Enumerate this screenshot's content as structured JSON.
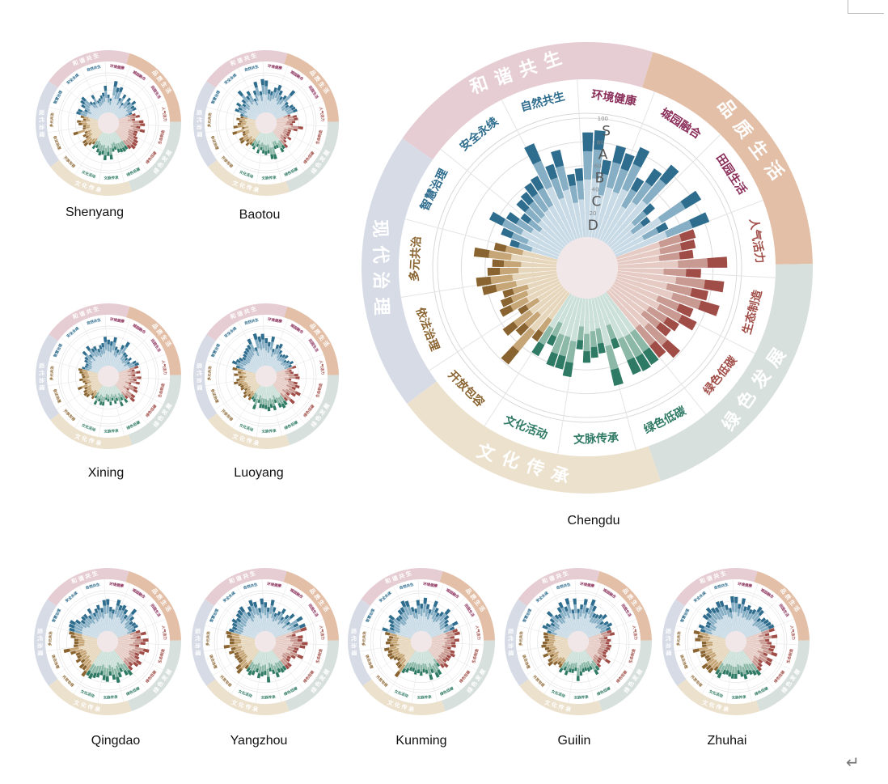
{
  "chart_data": {
    "type": "polar-bar",
    "rings": [
      {
        "name": "和谐共生",
        "color": "#e6cdd4"
      },
      {
        "name": "品质生活",
        "color": "#e3bfa7"
      },
      {
        "name": "绿色发展",
        "color": "#d7e0dc"
      },
      {
        "name": "文化传承",
        "color": "#ece1cd"
      },
      {
        "name": "现代治理",
        "color": "#d6dbe6"
      }
    ],
    "categories": [
      "环境健康",
      "城园融合",
      "田园生活",
      "人气活力",
      "生态制造",
      "绿色低碳",
      "绿色低碳",
      "文脉传承",
      "文化活动",
      "开放包容",
      "依法治理",
      "多元共治",
      "智慧治理",
      "安全永续",
      "自然共生"
    ],
    "grade_labels": [
      "S",
      "A",
      "B",
      "C",
      "D"
    ],
    "tick_labels": [
      "100",
      "80",
      "60",
      "40",
      "20"
    ],
    "charts": [
      {
        "city": "Chengdu",
        "values": [
          88,
          90,
          66,
          80,
          76,
          85,
          61,
          75,
          86,
          50,
          40,
          86,
          50,
          84,
          69,
          67,
          64,
          92,
          70,
          90,
          78,
          90,
          70,
          77,
          65,
          62,
          79,
          71,
          72,
          73,
          72,
          46,
          76,
          47,
          50,
          54,
          43,
          67,
          62,
          62,
          46,
          59,
          49,
          79,
          54,
          62,
          42,
          56,
          52,
          48,
          64,
          68,
          58,
          54,
          70,
          54,
          42,
          52,
          66,
          54,
          44,
          54,
          56,
          60,
          62,
          88,
          66,
          76,
          54,
          58
        ]
      },
      {
        "city": "Shenyang",
        "values": [
          48,
          38,
          86,
          70,
          74,
          46,
          60,
          38,
          60,
          52,
          64,
          54,
          56,
          40,
          48,
          58,
          44,
          66,
          70,
          58,
          72,
          54,
          54,
          60,
          66,
          68,
          70,
          62,
          58,
          60,
          58,
          56,
          46,
          50,
          70,
          60,
          72,
          58,
          62,
          56,
          46,
          52,
          42,
          50,
          60,
          58,
          44,
          48,
          40,
          70,
          42,
          40,
          52,
          56,
          40,
          48,
          62,
          60,
          44,
          58,
          66,
          70,
          46,
          40,
          58,
          38,
          42,
          48,
          54,
          72
        ]
      },
      {
        "city": "Baotou",
        "values": [
          86,
          62,
          58,
          70,
          80,
          68,
          54,
          62,
          86,
          52,
          48,
          58,
          60,
          62,
          40,
          56,
          58,
          50,
          44,
          72,
          58,
          42,
          42,
          42,
          52,
          40,
          46,
          58,
          56,
          62,
          46,
          46,
          72,
          70,
          54,
          58,
          54,
          46,
          56,
          40,
          50,
          44,
          44,
          52,
          44,
          58,
          56,
          42,
          40,
          66,
          38,
          60,
          48,
          44,
          52,
          42,
          44,
          62,
          56,
          66,
          52,
          60,
          84,
          60,
          70,
          44,
          64,
          86,
          58,
          90
        ]
      },
      {
        "city": "Xining",
        "values": [
          70,
          66,
          78,
          54,
          48,
          64,
          78,
          50,
          48,
          42,
          50,
          40,
          56,
          60,
          56,
          44,
          58,
          44,
          60,
          48,
          58,
          36,
          56,
          60,
          38,
          62,
          68,
          50,
          58,
          46,
          60,
          42,
          48,
          38,
          50,
          40,
          36,
          52,
          52,
          44,
          56,
          40,
          46,
          40,
          52,
          54,
          50,
          44,
          60,
          38,
          42,
          50,
          42,
          44,
          50,
          54,
          46,
          40,
          40,
          48,
          52,
          66,
          48,
          70,
          58,
          60,
          50,
          58,
          62,
          78
        ]
      },
      {
        "city": "Luoyang",
        "values": [
          74,
          64,
          80,
          48,
          62,
          68,
          52,
          44,
          48,
          52,
          40,
          46,
          54,
          46,
          56,
          42,
          46,
          58,
          62,
          40,
          58,
          66,
          58,
          76,
          66,
          52,
          76,
          58,
          66,
          70,
          64,
          48,
          66,
          58,
          66,
          60,
          58,
          58,
          46,
          66,
          48,
          44,
          50,
          44,
          54,
          48,
          40,
          48,
          46,
          50,
          60,
          52,
          44,
          58,
          48,
          64,
          56,
          70,
          62,
          58,
          52,
          56,
          60,
          64,
          68,
          82,
          54,
          90,
          80,
          86
        ]
      },
      {
        "city": "Qingdao",
        "values": [
          84,
          64,
          58,
          86,
          74,
          78,
          70,
          58,
          84,
          66,
          56,
          60,
          62,
          52,
          62,
          76,
          60,
          80,
          72,
          56,
          84,
          74,
          62,
          66,
          78,
          74,
          62,
          70,
          80,
          74,
          60,
          72,
          84,
          74,
          62,
          78,
          74,
          62,
          70,
          74,
          80,
          76,
          84,
          70,
          72,
          60,
          70,
          62,
          62,
          74,
          90,
          62,
          60,
          60,
          70,
          76,
          78,
          82,
          84,
          72,
          60,
          66,
          66,
          56,
          72,
          56,
          64,
          72,
          62,
          82
        ]
      },
      {
        "city": "Yangzhou",
        "values": [
          76,
          62,
          84,
          66,
          52,
          60,
          72,
          52,
          64,
          76,
          54,
          88,
          70,
          86,
          86,
          54,
          72,
          70,
          84,
          78,
          62,
          60,
          80,
          62,
          52,
          54,
          66,
          66,
          64,
          66,
          62,
          72,
          60,
          52,
          80,
          60,
          64,
          70,
          56,
          66,
          70,
          64,
          60,
          82,
          76,
          60,
          60,
          62,
          60,
          72,
          64,
          82,
          66,
          66,
          74,
          78,
          72,
          66,
          70,
          76,
          68,
          76,
          80,
          84,
          62,
          74,
          88,
          80,
          62,
          86
        ]
      },
      {
        "city": "Kunming",
        "values": [
          72,
          88,
          72,
          60,
          86,
          70,
          60,
          68,
          84,
          70,
          62,
          56,
          80,
          66,
          72,
          76,
          60,
          72,
          62,
          64,
          52,
          64,
          68,
          60,
          60,
          56,
          68,
          62,
          52,
          72,
          76,
          60,
          76,
          58,
          54,
          62,
          56,
          60,
          54,
          54,
          62,
          68,
          86,
          64,
          62,
          52,
          58,
          66,
          68,
          64,
          72,
          56,
          66,
          62,
          58,
          70,
          80,
          62,
          66,
          74,
          80,
          62,
          62,
          74,
          76,
          90,
          86,
          66,
          60,
          82
        ]
      },
      {
        "city": "Guilin",
        "values": [
          58,
          70,
          86,
          64,
          90,
          76,
          58,
          60,
          66,
          74,
          56,
          66,
          72,
          64,
          64,
          70,
          50,
          58,
          54,
          60,
          58,
          54,
          52,
          56,
          72,
          50,
          52,
          60,
          64,
          72,
          54,
          56,
          52,
          54,
          62,
          76,
          50,
          56,
          56,
          66,
          56,
          66,
          56,
          52,
          60,
          72,
          66,
          56,
          72,
          58,
          62,
          70,
          66,
          60,
          64,
          66,
          58,
          74,
          68,
          58,
          66,
          84,
          64,
          60,
          76,
          86,
          70,
          90,
          58,
          86
        ]
      },
      {
        "city": "Zhuhai",
        "values": [
          90,
          72,
          88,
          68,
          74,
          66,
          70,
          84,
          80,
          60,
          70,
          74,
          76,
          80,
          78,
          62,
          82,
          60,
          66,
          76,
          74,
          86,
          62,
          80,
          82,
          60,
          66,
          72,
          80,
          74,
          68,
          64,
          74,
          66,
          58,
          70,
          70,
          66,
          62,
          64,
          78,
          72,
          66,
          80,
          78,
          84,
          64,
          64,
          72,
          70,
          88,
          62,
          62,
          80,
          74,
          86,
          70,
          78,
          62,
          64,
          82,
          78,
          88,
          80,
          76,
          88,
          86,
          72,
          62,
          92
        ]
      }
    ]
  }
}
